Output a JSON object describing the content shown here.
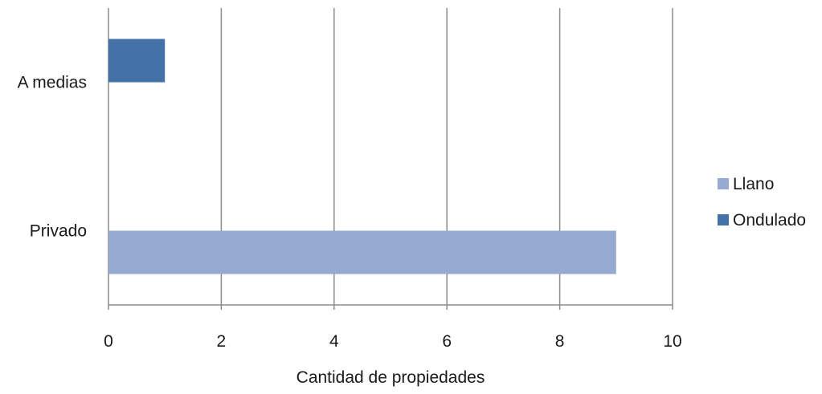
{
  "chart_data": {
    "type": "bar",
    "orientation": "horizontal",
    "stacked": false,
    "categories": [
      "A medias",
      "Privado"
    ],
    "series": [
      {
        "name": "Llano",
        "values": [
          0,
          9
        ],
        "color": "#95a9d1"
      },
      {
        "name": "Ondulado",
        "values": [
          1,
          0
        ],
        "color": "#4472a8"
      }
    ],
    "title": "",
    "xlabel": "Cantidad de propiedades",
    "ylabel": "",
    "xlim": [
      0,
      10
    ],
    "xticks": [
      0,
      2,
      4,
      6,
      8,
      10
    ],
    "grid": true,
    "grid_color": "#8c8c8c",
    "legend": "right"
  }
}
